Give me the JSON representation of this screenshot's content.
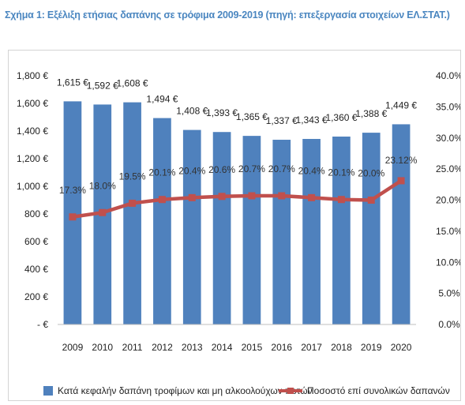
{
  "title": "Σχήμα 1: Εξέλιξη ετήσιας δαπάνης σε τρόφιμα 2009-2019 (πηγή: επεξεργασία στοιχείων ΕΛ.ΣΤΑΤ.)",
  "colors": {
    "bar": "#4f81bd",
    "line": "#c0504d",
    "title": "#4a86c0"
  },
  "chart_data": {
    "type": "bar",
    "title": "",
    "categories": [
      "2009",
      "2010",
      "2011",
      "2012",
      "2013",
      "2014",
      "2015",
      "2016",
      "2017",
      "2018",
      "2019",
      "2020"
    ],
    "series": [
      {
        "name": "Κατά κεφαλήν δαπάνη τροφίμων και μη αλκοολούχων ποτών",
        "type": "bar",
        "axis": "left",
        "values": [
          1615,
          1592,
          1608,
          1494,
          1408,
          1393,
          1365,
          1337,
          1343,
          1360,
          1388,
          1449
        ],
        "labels": [
          "1,615 €",
          "1,592 €",
          "1,608 €",
          "1,494 €",
          "1,408 €",
          "1,393 €",
          "1,365 €",
          "1,337 €",
          "1,343 €",
          "1,360 €",
          "1,388 €",
          "1,449 €"
        ]
      },
      {
        "name": "Ποσοστό επί συνολικών δαπανών",
        "type": "line",
        "axis": "right",
        "values": [
          17.3,
          18.0,
          19.5,
          20.1,
          20.4,
          20.6,
          20.7,
          20.7,
          20.4,
          20.1,
          20.0,
          23.12
        ],
        "labels": [
          "17.3%",
          "18.0%",
          "19.5%",
          "20.1%",
          "20.4%",
          "20.6%",
          "20.7%",
          "20.7%",
          "20.4%",
          "20.1%",
          "20.0%",
          "23.12%"
        ]
      }
    ],
    "y_left": {
      "range": [
        0,
        1800
      ],
      "ticks": [
        0,
        200,
        400,
        600,
        800,
        1000,
        1200,
        1400,
        1600,
        1800
      ],
      "tick_labels": [
        "-   €",
        "200 €",
        "400 €",
        "600 €",
        "800 €",
        "1,000 €",
        "1,200 €",
        "1,400 €",
        "1,600 €",
        "1,800 €"
      ]
    },
    "y_right": {
      "range": [
        0,
        40
      ],
      "ticks": [
        0,
        5,
        10,
        15,
        20,
        25,
        30,
        35,
        40
      ],
      "tick_labels": [
        "0.0%",
        "5.0%",
        "10.0%",
        "15.0%",
        "20.0%",
        "25.0%",
        "30.0%",
        "35.0%",
        "40.0%"
      ]
    },
    "grid": false,
    "legend": "bottom"
  }
}
